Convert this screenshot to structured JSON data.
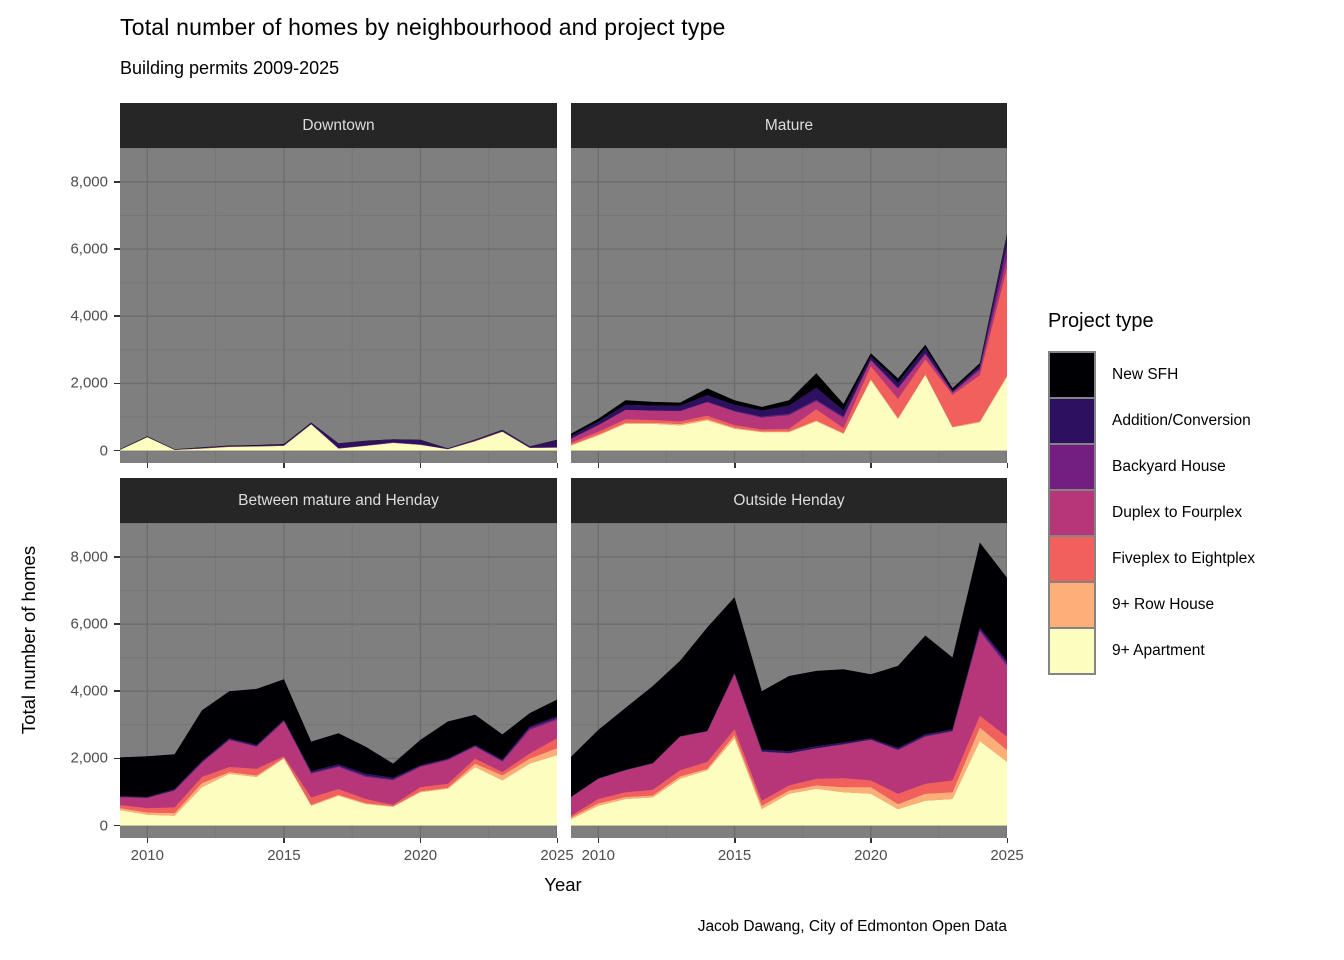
{
  "title": "Total number of homes by neighbourhood and project type",
  "subtitle": "Building permits 2009-2025",
  "caption": "Jacob Dawang, City of Edmonton Open Data",
  "axes": {
    "x_title": "Year",
    "y_title": "Total number of homes",
    "x_tick_labels": [
      "2010",
      "2015",
      "2020",
      "2025"
    ],
    "y_tick_labels": [
      "0",
      "2,000",
      "4,000",
      "6,000",
      "8,000"
    ]
  },
  "legend": {
    "title": "Project type",
    "entries": [
      {
        "label": "New SFH",
        "color": "#000004"
      },
      {
        "label": "Addition/Conversion",
        "color": "#2D1160"
      },
      {
        "label": "Backyard House",
        "color": "#721F81"
      },
      {
        "label": "Duplex to Fourplex",
        "color": "#B63679"
      },
      {
        "label": "Fiveplex to Eightplex",
        "color": "#F1605D"
      },
      {
        "label": "9+ Row House",
        "color": "#FEAF77"
      },
      {
        "label": "9+ Apartment",
        "color": "#FCFDBF"
      }
    ]
  },
  "style_colors": {
    "panel_bg": "#7f7f7f",
    "grid_major": "#6d6d6d",
    "grid_minor": "#777777",
    "strip_bg": "#262626",
    "strip_text": "#dcdcdc",
    "axis_text": "#4d4d4d"
  },
  "chart_data": {
    "type": "area",
    "stacked": true,
    "x": [
      2009,
      2010,
      2011,
      2012,
      2013,
      2014,
      2015,
      2016,
      2017,
      2018,
      2019,
      2020,
      2021,
      2022,
      2023,
      2024,
      2025
    ],
    "x_range": [
      2009,
      2025
    ],
    "ylim": [
      0,
      9000
    ],
    "grid_major_x": [
      2010,
      2015,
      2020,
      2025
    ],
    "grid_minor_x": [
      2012.5,
      2017.5,
      2022.5
    ],
    "grid_major_y": [
      0,
      2000,
      4000,
      6000,
      8000
    ],
    "grid_minor_y": [
      1000,
      3000,
      5000,
      7000,
      9000
    ],
    "stack_note": "series listed top-of-stack first; 9+ Apartment is bottom of stack",
    "facets": [
      {
        "name": "Downtown",
        "series": [
          {
            "name": "New SFH",
            "values": [
              10,
              15,
              10,
              10,
              10,
              15,
              15,
              15,
              10,
              10,
              10,
              10,
              5,
              10,
              10,
              5,
              10
            ]
          },
          {
            "name": "Addition/Conversion",
            "values": [
              10,
              10,
              10,
              20,
              20,
              20,
              30,
              30,
              140,
              130,
              90,
              130,
              20,
              30,
              40,
              40,
              210
            ]
          },
          {
            "name": "Backyard House",
            "values": [
              0,
              0,
              0,
              0,
              0,
              0,
              0,
              0,
              0,
              0,
              0,
              0,
              0,
              0,
              0,
              0,
              0
            ]
          },
          {
            "name": "Duplex to Fourplex",
            "values": [
              0,
              0,
              0,
              10,
              10,
              10,
              10,
              10,
              10,
              10,
              10,
              10,
              5,
              10,
              10,
              5,
              10
            ]
          },
          {
            "name": "Fiveplex to Eightplex",
            "values": [
              0,
              0,
              0,
              0,
              0,
              0,
              0,
              0,
              0,
              0,
              0,
              0,
              0,
              0,
              0,
              0,
              0
            ]
          },
          {
            "name": "9+ Row House",
            "values": [
              0,
              0,
              0,
              0,
              0,
              0,
              0,
              0,
              0,
              0,
              0,
              0,
              0,
              0,
              0,
              0,
              0
            ]
          },
          {
            "name": "9+ Apartment",
            "values": [
              20,
              400,
              20,
              60,
              110,
              120,
              140,
              780,
              60,
              140,
              230,
              170,
              40,
              280,
              560,
              80,
              90
            ]
          }
        ]
      },
      {
        "name": "Mature",
        "series": [
          {
            "name": "New SFH",
            "values": [
              70,
              90,
              140,
              110,
              100,
              200,
              140,
              110,
              160,
              430,
              200,
              100,
              130,
              100,
              80,
              75,
              90
            ]
          },
          {
            "name": "Addition/Conversion",
            "values": [
              80,
              100,
              150,
              150,
              150,
              200,
              180,
              180,
              250,
              360,
              180,
              100,
              150,
              150,
              40,
              80,
              270
            ]
          },
          {
            "name": "Backyard House",
            "values": [
              0,
              0,
              0,
              0,
              10,
              10,
              20,
              30,
              40,
              40,
              40,
              20,
              30,
              30,
              20,
              50,
              350
            ]
          },
          {
            "name": "Duplex to Fourplex",
            "values": [
              120,
              200,
              280,
              280,
              300,
              400,
              400,
              350,
              400,
              240,
              300,
              170,
              300,
              150,
              60,
              150,
              300
            ]
          },
          {
            "name": "Fiveplex to Eightplex",
            "values": [
              60,
              80,
              100,
              80,
              80,
              100,
              80,
              60,
              80,
              330,
              150,
              380,
              570,
              450,
              950,
              1375,
              3200
            ]
          },
          {
            "name": "9+ Row House",
            "values": [
              20,
              30,
              30,
              30,
              40,
              40,
              30,
              20,
              20,
              30,
              20,
              30,
              30,
              20,
              20,
              30,
              40
            ]
          },
          {
            "name": "9+ Apartment",
            "values": [
              150,
              450,
              800,
              800,
              750,
              900,
              650,
              550,
              550,
              870,
              500,
              2100,
              940,
              2250,
              690,
              840,
              2200
            ]
          }
        ]
      },
      {
        "name": "Between mature and Henday",
        "series": [
          {
            "name": "New SFH",
            "values": [
              1150,
              1215,
              1035,
              1505,
              1400,
              1665,
              1205,
              885,
              925,
              805,
              420,
              755,
              1105,
              905,
              750,
              400,
              500
            ]
          },
          {
            "name": "Addition/Conversion",
            "values": [
              30,
              20,
              40,
              40,
              35,
              40,
              30,
              40,
              50,
              60,
              50,
              25,
              25,
              25,
              35,
              50,
              50
            ]
          },
          {
            "name": "Backyard House",
            "values": [
              10,
              10,
              10,
              20,
              20,
              20,
              20,
              30,
              30,
              40,
              30,
              25,
              25,
              25,
              35,
              50,
              50
            ]
          },
          {
            "name": "Duplex to Fourplex",
            "values": [
              230,
              300,
              500,
              420,
              800,
              650,
              1035,
              705,
              655,
              655,
              725,
              600,
              700,
              350,
              300,
              705,
              550
            ]
          },
          {
            "name": "Fiveplex to Eightplex",
            "values": [
              90,
              130,
              170,
              180,
              150,
              200,
              40,
              220,
              170,
              120,
              40,
              120,
              120,
              150,
              100,
              150,
              300
            ]
          },
          {
            "name": "9+ Row House",
            "values": [
              60,
              70,
              80,
              125,
              50,
              50,
              30,
              30,
              30,
              30,
              20,
              30,
              30,
              100,
              150,
              150,
              200
            ]
          },
          {
            "name": "9+ Apartment",
            "values": [
              460,
              320,
              290,
              1140,
              1545,
              1445,
              1995,
              590,
              890,
              640,
              560,
              995,
              1095,
              1745,
              1345,
              1845,
              2100
            ]
          }
        ]
      },
      {
        "name": "Outside Henday",
        "series": [
          {
            "name": "New SFH",
            "values": [
              1190,
              1445,
              1845,
              2295,
              2245,
              3080,
              2245,
              1735,
              2240,
              2240,
              2180,
              1905,
              2440,
              2940,
              2135,
              2530,
              2480
            ]
          },
          {
            "name": "Addition/Conversion",
            "values": [
              10,
              10,
              10,
              10,
              10,
              15,
              40,
              60,
              60,
              60,
              50,
              40,
              50,
              50,
              50,
              65,
              70
            ]
          },
          {
            "name": "Backyard House",
            "values": [
              5,
              5,
              5,
              5,
              5,
              5,
              10,
              10,
              10,
              10,
              10,
              10,
              20,
              20,
              20,
              60,
              80
            ]
          },
          {
            "name": "Duplex to Fourplex",
            "values": [
              550,
              600,
              650,
              780,
              1000,
              905,
              1635,
              1455,
              950,
              900,
              1000,
              1205,
              1300,
              1405,
              1455,
              2505,
              2100
            ]
          },
          {
            "name": "Fiveplex to Eightplex",
            "values": [
              50,
              130,
              145,
              165,
              180,
              200,
              170,
              150,
              150,
              200,
              270,
              200,
              305,
              300,
              350,
              350,
              400
            ]
          },
          {
            "name": "9+ Row House",
            "values": [
              50,
              70,
              60,
              60,
              70,
              50,
              100,
              100,
              100,
              100,
              150,
              200,
              150,
              205,
              205,
              405,
              350
            ]
          },
          {
            "name": "9+ Apartment",
            "values": [
              190,
              590,
              790,
              840,
              1395,
              1645,
              2600,
              490,
              945,
              1095,
              995,
              945,
              490,
              740,
              790,
              2515,
              1900
            ]
          }
        ]
      }
    ]
  }
}
